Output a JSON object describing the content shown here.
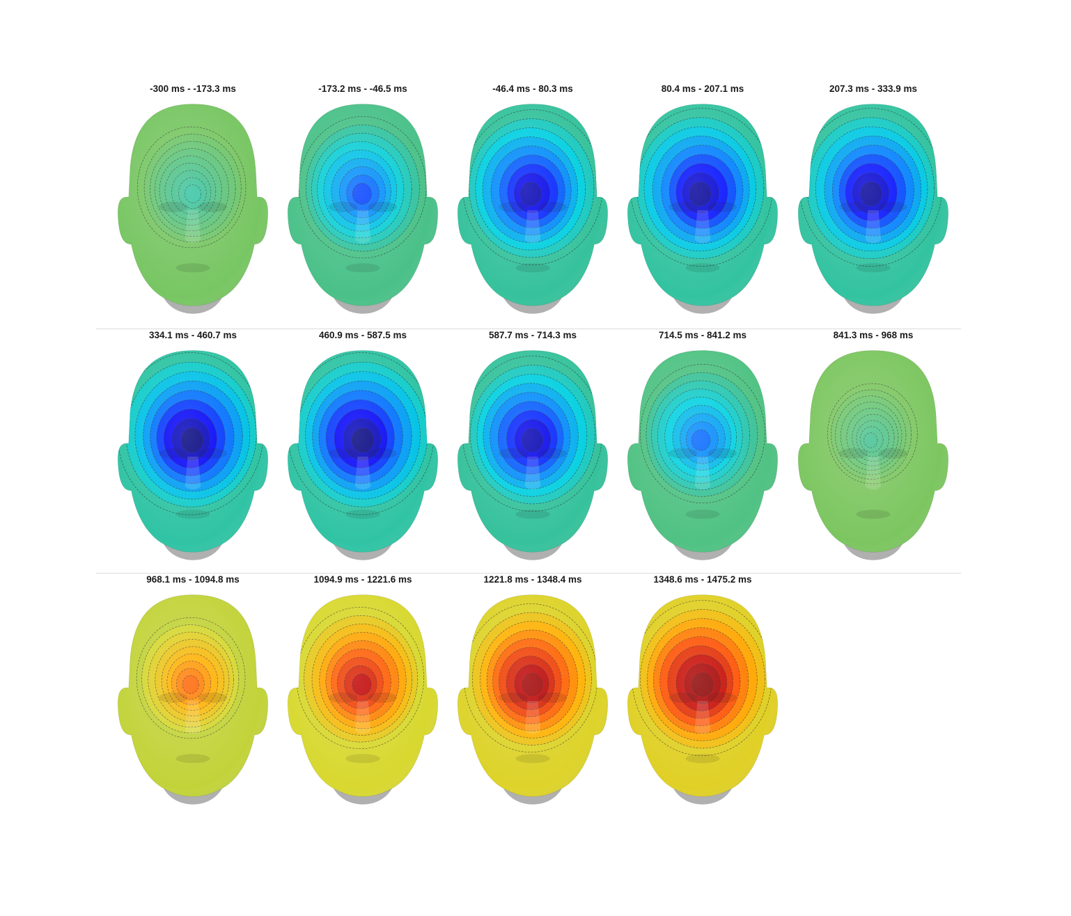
{
  "figure": {
    "panels": [
      {
        "title": "-300 ms - -173.3 ms",
        "level": 0.38,
        "spread": 0.45
      },
      {
        "title": "-173.2 ms - -46.5 ms",
        "level": 0.15,
        "spread": 0.6
      },
      {
        "title": "-46.4 ms - 80.3 ms",
        "level": 0.04,
        "spread": 0.7
      },
      {
        "title": "80.4 ms - 207.1 ms",
        "level": 0.02,
        "spread": 0.72
      },
      {
        "title": "207.3 ms - 333.9 ms",
        "level": 0.02,
        "spread": 0.72
      },
      {
        "title": "334.1 ms - 460.7 ms",
        "level": 0.0,
        "spread": 0.75
      },
      {
        "title": "460.9 ms - 587.5 ms",
        "level": 0.0,
        "spread": 0.75
      },
      {
        "title": "587.7 ms - 714.3 ms",
        "level": 0.04,
        "spread": 0.7
      },
      {
        "title": "714.5 ms - 841.2 ms",
        "level": 0.18,
        "spread": 0.58
      },
      {
        "title": "841.3 ms - 968 ms",
        "level": 0.4,
        "spread": 0.3
      },
      {
        "title": "968.1 ms - 1094.8 ms",
        "level": 0.78,
        "spread": 0.45
      },
      {
        "title": "1094.9 ms - 1221.6 ms",
        "level": 0.9,
        "spread": 0.6
      },
      {
        "title": "1221.8 ms - 1348.4 ms",
        "level": 0.95,
        "spread": 0.65
      },
      {
        "title": "1348.6 ms - 1475.2 ms",
        "level": 0.98,
        "spread": 0.7
      }
    ],
    "colormap": [
      "#00007f",
      "#0000ff",
      "#0080ff",
      "#00d0e0",
      "#40c090",
      "#90c850",
      "#d8d830",
      "#ffb000",
      "#ff5000",
      "#c00000",
      "#7f0000"
    ],
    "neutral_color": "#b8c840",
    "chin_color": "#b0b0b0"
  }
}
